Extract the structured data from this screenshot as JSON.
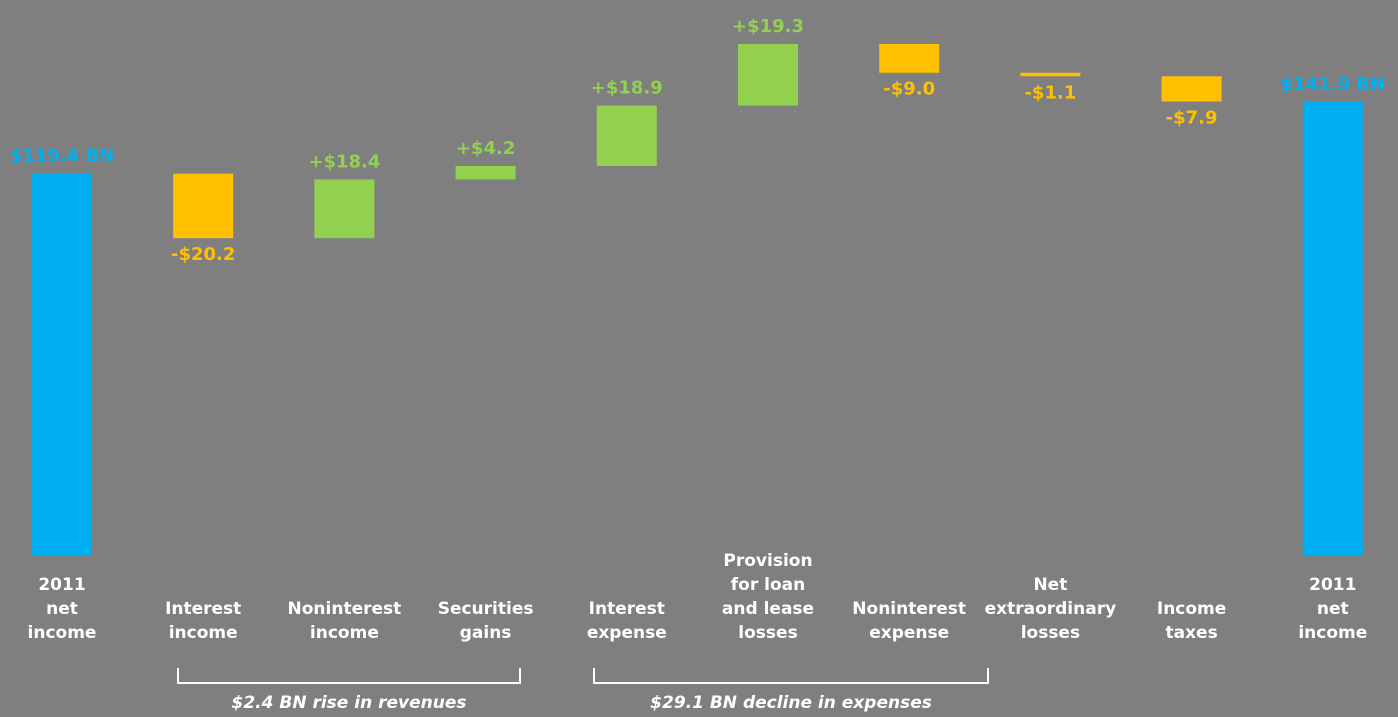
{
  "chart_data": {
    "type": "waterfall",
    "categories": [
      "2011\nnet\nincome",
      "Interest\nincome",
      "Noninterest\nincome",
      "Securities\ngains",
      "Interest\nexpense",
      "Provision\nfor loan\nand lease\nlosses",
      "Noninterest\nexpense",
      "Net\nextraordinary\nlosses",
      "Income\ntaxes",
      "2011\nnet\nincome"
    ],
    "values": [
      119.4,
      -20.2,
      18.4,
      4.2,
      18.9,
      19.3,
      -9.0,
      -1.1,
      -7.9,
      141.9
    ],
    "value_labels": [
      "$119.4 BN",
      "-$20.2",
      "+$18.4",
      "+$4.2",
      "+$18.9",
      "+$19.3",
      "-$9.0",
      "-$1.1",
      "-$7.9",
      "$141.9 BN"
    ],
    "colors": {
      "total": "#00b0f0",
      "increase": "#92d050",
      "decrease": "#ffc000"
    },
    "annotations": [
      {
        "text": "$2.4 BN rise in revenues"
      },
      {
        "text": "$29.1 BN decline in expenses"
      }
    ]
  }
}
